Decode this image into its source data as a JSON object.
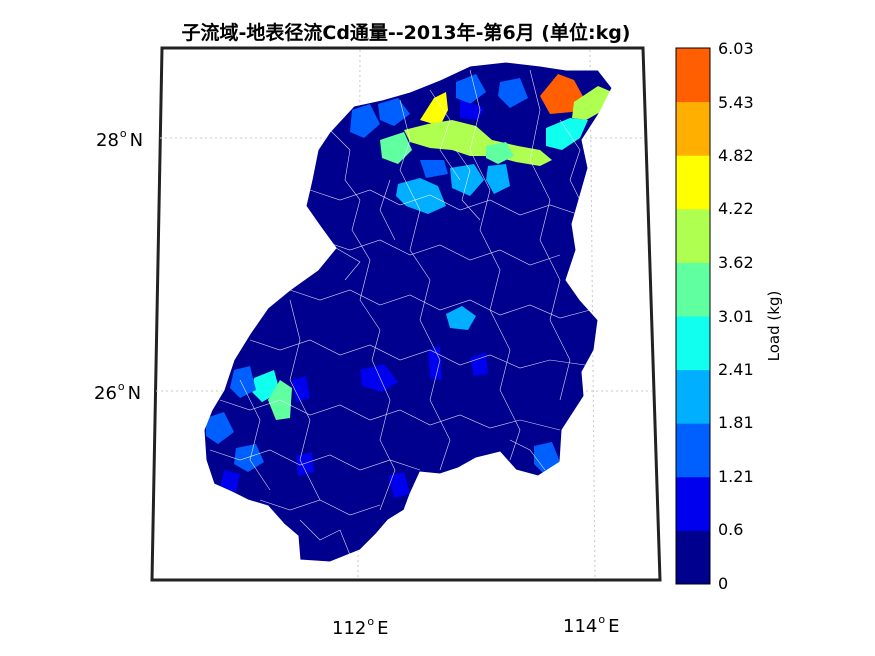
{
  "title": "子流域-地表径流Cd通量--2013年-第6月  (单位:kg)",
  "map": {
    "lat_labels": [
      {
        "value": "28",
        "dir": "N"
      },
      {
        "value": "26",
        "dir": "N"
      }
    ],
    "lon_labels": [
      {
        "value": "112",
        "dir": "E"
      },
      {
        "value": "114",
        "dir": "E"
      }
    ],
    "background_color": "#00008F",
    "boundary_color": "#FFFFFF",
    "frame_color": "#222222"
  },
  "colorbar": {
    "label": "Load (kg)",
    "ticks": [
      "6.03",
      "5.43",
      "4.82",
      "4.22",
      "3.62",
      "3.01",
      "2.41",
      "1.81",
      "1.21",
      "0.6",
      "0"
    ],
    "colors": [
      "#00008F",
      "#0000EF",
      "#005FFF",
      "#00AFFF",
      "#10FFEF",
      "#60FF9F",
      "#AFFF50",
      "#FFFF00",
      "#FFAF00",
      "#FF5F00"
    ]
  }
}
